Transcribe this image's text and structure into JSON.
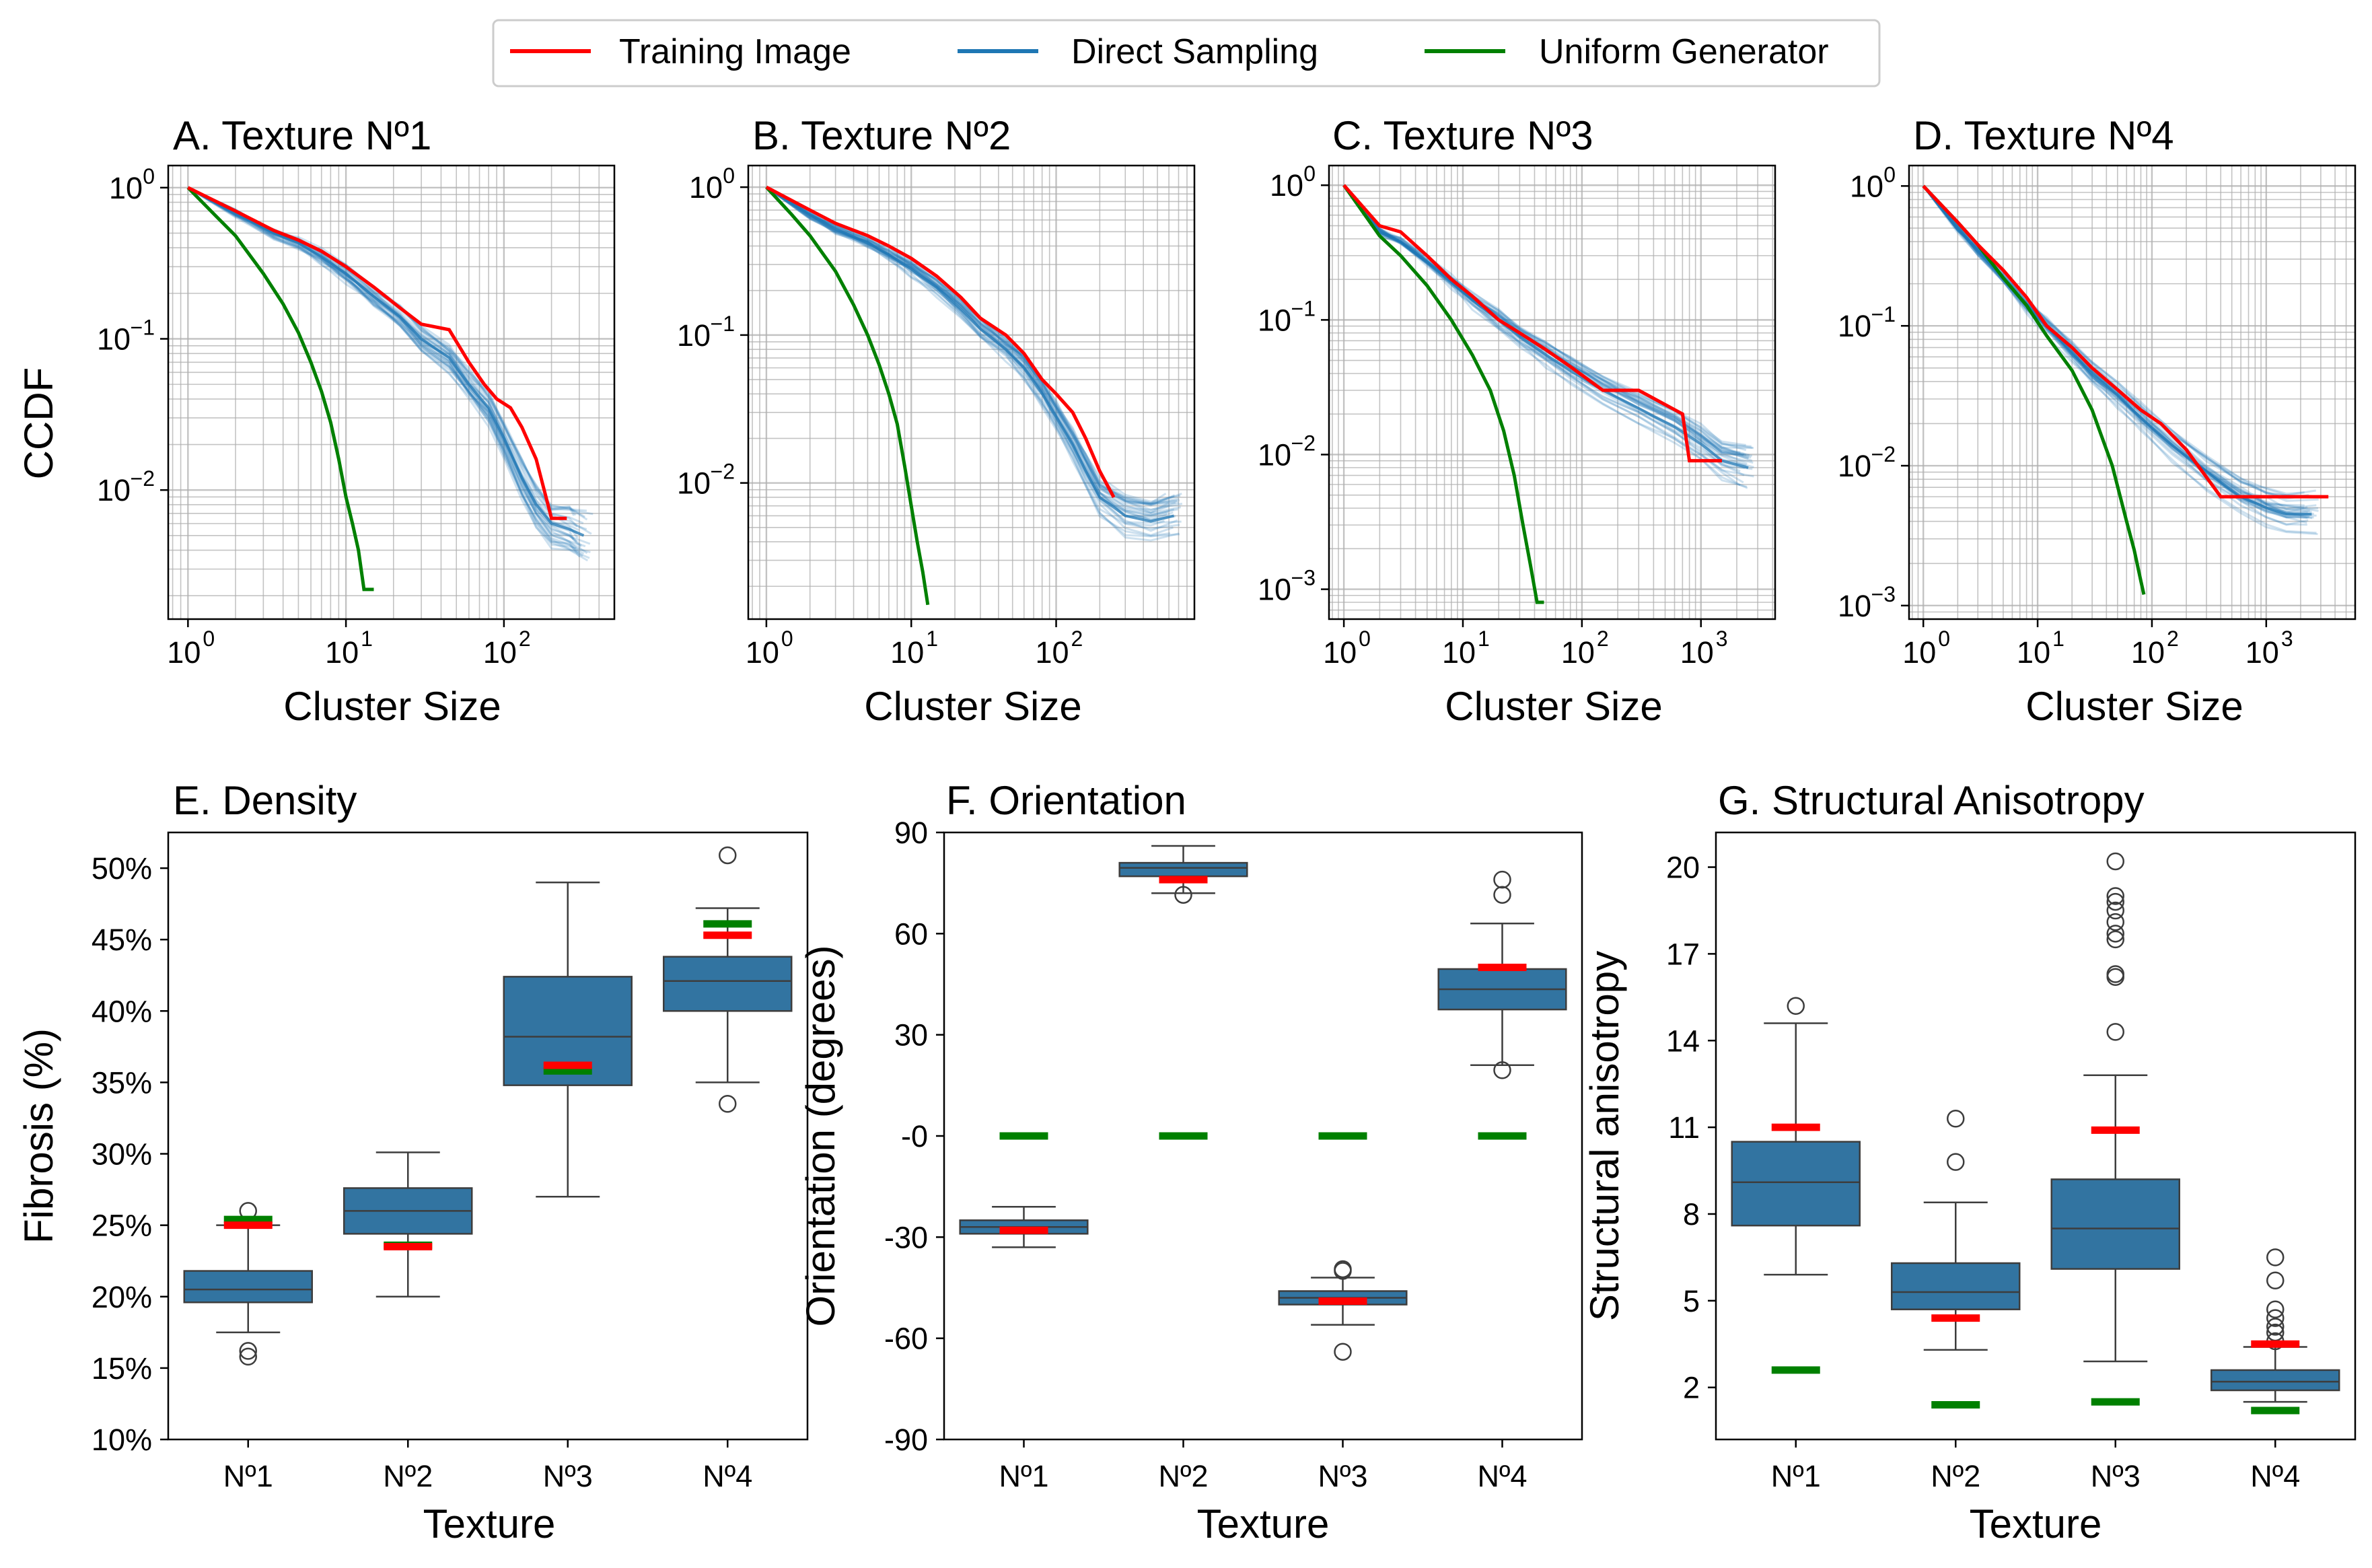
{
  "legend": {
    "items": [
      {
        "label": "Training Image",
        "color": "#ff0000"
      },
      {
        "label": "Direct Sampling",
        "color": "#1f77b4"
      },
      {
        "label": "Uniform Generator",
        "color": "#008000"
      }
    ]
  },
  "colors": {
    "training": "#ff0000",
    "direct": "#1f77b4",
    "uniform": "#008000",
    "box": "#3274a1",
    "grid": "#b0b0b0"
  },
  "chart_data": [
    {
      "type": "line",
      "id": "A",
      "title": "A. Texture Nº1",
      "xlabel": "Cluster Size",
      "ylabel": "CCDF",
      "xscale": "log",
      "yscale": "log",
      "xlim": [
        0.75,
        500
      ],
      "ylim": [
        0.0014,
        1.4
      ],
      "xticks": [
        1,
        10,
        100
      ],
      "xtick_labels": [
        "10",
        "10",
        "10"
      ],
      "xtick_exps": [
        "0",
        "1",
        "2"
      ],
      "yticks": [
        1,
        0.1,
        0.01
      ],
      "ytick_labels": [
        "10",
        "10",
        "10"
      ],
      "ytick_exps": [
        "0",
        "−1",
        "−2"
      ],
      "grid": true,
      "series": [
        {
          "name": "Training Image",
          "x": [
            1,
            2,
            3.5,
            5,
            7,
            10,
            15,
            22,
            30,
            45,
            60,
            75,
            90,
            110,
            130,
            160,
            200,
            250
          ],
          "y": [
            1,
            0.7,
            0.52,
            0.45,
            0.38,
            0.3,
            0.22,
            0.16,
            0.125,
            0.115,
            0.07,
            0.05,
            0.04,
            0.035,
            0.026,
            0.016,
            0.0065,
            0.0065
          ]
        },
        {
          "name": "Direct Sampling",
          "x": [
            1,
            2,
            3.5,
            5,
            7,
            10,
            15,
            22,
            30,
            45,
            60,
            80,
            100,
            130,
            160,
            200,
            260,
            320
          ],
          "y": [
            1,
            0.68,
            0.5,
            0.43,
            0.35,
            0.27,
            0.19,
            0.14,
            0.1,
            0.075,
            0.05,
            0.035,
            0.022,
            0.012,
            0.008,
            0.006,
            0.0055,
            0.005
          ],
          "spread": 0.35
        },
        {
          "name": "Uniform Generator",
          "x": [
            1,
            1.5,
            2,
            3,
            4,
            5,
            6,
            7,
            8,
            9,
            10,
            11,
            12,
            13,
            15
          ],
          "y": [
            1,
            0.65,
            0.48,
            0.27,
            0.17,
            0.11,
            0.07,
            0.045,
            0.028,
            0.016,
            0.009,
            0.006,
            0.004,
            0.0022,
            0.0022
          ]
        }
      ]
    },
    {
      "type": "line",
      "id": "B",
      "title": "B. Texture Nº2",
      "xlabel": "Cluster Size",
      "ylabel": "",
      "xscale": "log",
      "yscale": "log",
      "xlim": [
        0.75,
        900
      ],
      "ylim": [
        0.0012,
        1.4
      ],
      "xticks": [
        1,
        10,
        100
      ],
      "xtick_labels": [
        "10",
        "10",
        "10"
      ],
      "xtick_exps": [
        "0",
        "1",
        "2"
      ],
      "yticks": [
        1,
        0.1,
        0.01
      ],
      "ytick_labels": [
        "10",
        "10",
        "10"
      ],
      "ytick_exps": [
        "0",
        "−1",
        "−2"
      ],
      "grid": true,
      "series": [
        {
          "name": "Training Image",
          "x": [
            1,
            2,
            3,
            5,
            7,
            10,
            15,
            22,
            30,
            45,
            60,
            80,
            100,
            130,
            160,
            200,
            250
          ],
          "y": [
            1,
            0.7,
            0.57,
            0.47,
            0.4,
            0.33,
            0.25,
            0.18,
            0.13,
            0.1,
            0.075,
            0.05,
            0.04,
            0.03,
            0.02,
            0.012,
            0.008
          ]
        },
        {
          "name": "Direct Sampling",
          "x": [
            1,
            2,
            3,
            5,
            7,
            10,
            15,
            22,
            30,
            45,
            60,
            80,
            100,
            130,
            160,
            200,
            300,
            450,
            650
          ],
          "y": [
            1,
            0.65,
            0.52,
            0.42,
            0.35,
            0.28,
            0.21,
            0.15,
            0.11,
            0.08,
            0.06,
            0.04,
            0.028,
            0.018,
            0.012,
            0.008,
            0.006,
            0.0055,
            0.006
          ],
          "spread": 0.3
        },
        {
          "name": "Uniform Generator",
          "x": [
            1,
            1.5,
            2,
            3,
            4,
            5,
            6,
            7,
            8,
            9,
            10,
            11,
            12,
            13
          ],
          "y": [
            1,
            0.65,
            0.47,
            0.27,
            0.16,
            0.1,
            0.063,
            0.04,
            0.025,
            0.013,
            0.007,
            0.004,
            0.0025,
            0.0015
          ]
        }
      ]
    },
    {
      "type": "line",
      "id": "C",
      "title": "C. Texture Nº3",
      "xlabel": "Cluster Size",
      "ylabel": "",
      "xscale": "log",
      "yscale": "log",
      "xlim": [
        0.75,
        4200
      ],
      "ylim": [
        0.0006,
        1.4
      ],
      "xticks": [
        1,
        10,
        100,
        1000
      ],
      "xtick_labels": [
        "10",
        "10",
        "10",
        "10"
      ],
      "xtick_exps": [
        "0",
        "1",
        "2",
        "3"
      ],
      "yticks": [
        1,
        0.1,
        0.01,
        0.001
      ],
      "ytick_labels": [
        "10",
        "10",
        "10",
        "10"
      ],
      "ytick_exps": [
        "0",
        "−1",
        "−2",
        "−3"
      ],
      "grid": true,
      "series": [
        {
          "name": "Training Image",
          "x": [
            1,
            2,
            3,
            5,
            8,
            12,
            20,
            30,
            50,
            80,
            150,
            300,
            700,
            800,
            1500
          ],
          "y": [
            1,
            0.5,
            0.45,
            0.3,
            0.2,
            0.15,
            0.1,
            0.08,
            0.06,
            0.045,
            0.03,
            0.03,
            0.02,
            0.009,
            0.009
          ]
        },
        {
          "name": "Direct Sampling",
          "x": [
            1,
            2,
            3,
            5,
            8,
            12,
            20,
            30,
            50,
            80,
            150,
            300,
            600,
            1000,
            1500,
            2500
          ],
          "y": [
            1,
            0.45,
            0.38,
            0.27,
            0.19,
            0.14,
            0.1,
            0.075,
            0.055,
            0.042,
            0.03,
            0.022,
            0.016,
            0.012,
            0.009,
            0.008
          ],
          "spread": 0.35
        },
        {
          "name": "Uniform Generator",
          "x": [
            1,
            2,
            3,
            5,
            8,
            12,
            17,
            22,
            27,
            32,
            37,
            42,
            48
          ],
          "y": [
            1,
            0.42,
            0.3,
            0.18,
            0.1,
            0.055,
            0.03,
            0.015,
            0.007,
            0.003,
            0.0015,
            0.0008,
            0.0008
          ]
        }
      ]
    },
    {
      "type": "line",
      "id": "D",
      "title": "D. Texture Nº4",
      "xlabel": "Cluster Size",
      "ylabel": "",
      "xscale": "log",
      "yscale": "log",
      "xlim": [
        0.75,
        6000
      ],
      "ylim": [
        0.0008,
        1.4
      ],
      "xticks": [
        1,
        10,
        100,
        1000
      ],
      "xtick_labels": [
        "10",
        "10",
        "10",
        "10"
      ],
      "xtick_exps": [
        "0",
        "1",
        "2",
        "3"
      ],
      "yticks": [
        1,
        0.1,
        0.01,
        0.001
      ],
      "ytick_labels": [
        "10",
        "10",
        "10",
        "10"
      ],
      "ytick_exps": [
        "0",
        "−1",
        "−2",
        "−3"
      ],
      "grid": true,
      "series": [
        {
          "name": "Training Image",
          "x": [
            1,
            2,
            3,
            5,
            8,
            12,
            20,
            30,
            50,
            80,
            120,
            200,
            400,
            1000,
            3500
          ],
          "y": [
            1,
            0.55,
            0.38,
            0.25,
            0.16,
            0.1,
            0.07,
            0.05,
            0.035,
            0.025,
            0.02,
            0.013,
            0.006,
            0.006,
            0.006
          ]
        },
        {
          "name": "Direct Sampling",
          "x": [
            1,
            2,
            3,
            5,
            8,
            12,
            20,
            30,
            50,
            80,
            150,
            300,
            600,
            1000,
            1500,
            2500
          ],
          "y": [
            1,
            0.5,
            0.34,
            0.22,
            0.14,
            0.1,
            0.065,
            0.045,
            0.032,
            0.022,
            0.014,
            0.009,
            0.006,
            0.005,
            0.0045,
            0.0045
          ],
          "spread": 0.35
        },
        {
          "name": "Uniform Generator",
          "x": [
            1,
            2,
            3,
            5,
            8,
            12,
            20,
            30,
            45,
            60,
            70,
            80,
            85
          ],
          "y": [
            1,
            0.55,
            0.38,
            0.22,
            0.14,
            0.085,
            0.048,
            0.025,
            0.01,
            0.004,
            0.0025,
            0.0015,
            0.0012
          ]
        }
      ]
    },
    {
      "type": "box",
      "id": "E",
      "title": "E. Density",
      "xlabel": "Texture",
      "ylabel": "Fibrosis (%)",
      "categories": [
        "Nº1",
        "Nº2",
        "Nº3",
        "Nº4"
      ],
      "ylim": [
        10,
        52.5
      ],
      "yticks": [
        10,
        15,
        20,
        25,
        30,
        35,
        40,
        45,
        50
      ],
      "ytick_labels": [
        "10%",
        "15%",
        "20%",
        "25%",
        "30%",
        "35%",
        "40%",
        "45%",
        "50%"
      ],
      "boxes": [
        {
          "whislo": 17.5,
          "q1": 19.6,
          "med": 20.5,
          "q3": 21.8,
          "whishi": 25.0,
          "fliers": [
            15.8,
            16.2,
            26.0
          ]
        },
        {
          "whislo": 20.0,
          "q1": 24.4,
          "med": 26.0,
          "q3": 27.6,
          "whishi": 30.1,
          "fliers": []
        },
        {
          "whislo": 27.0,
          "q1": 34.8,
          "med": 38.2,
          "q3": 42.4,
          "whishi": 49.0,
          "fliers": []
        },
        {
          "whislo": 35.0,
          "q1": 40.0,
          "med": 42.1,
          "q3": 43.8,
          "whishi": 47.2,
          "fliers": [
            33.5,
            50.9
          ]
        }
      ],
      "training": [
        25.0,
        23.5,
        36.2,
        45.3
      ],
      "uniform": [
        25.4,
        23.6,
        35.8,
        46.1
      ]
    },
    {
      "type": "box",
      "id": "F",
      "title": "F. Orientation",
      "xlabel": "Texture",
      "ylabel": "Orientation (degrees)",
      "categories": [
        "Nº1",
        "Nº2",
        "Nº3",
        "Nº4"
      ],
      "ylim": [
        -90,
        90
      ],
      "yticks": [
        -90,
        -60,
        -30,
        0,
        30,
        60,
        90
      ],
      "ytick_labels": [
        "-90",
        "-60",
        "-30",
        "-0",
        "30",
        "60",
        "90"
      ],
      "boxes": [
        {
          "whislo": -33,
          "q1": -29,
          "med": -27,
          "q3": -25,
          "whishi": -21,
          "fliers": []
        },
        {
          "whislo": 72,
          "q1": 77,
          "med": 79.5,
          "q3": 81,
          "whishi": 86,
          "fliers": [
            71.5
          ]
        },
        {
          "whislo": -56,
          "q1": -50,
          "med": -48,
          "q3": -46,
          "whishi": -42,
          "fliers": [
            -40,
            -39.5,
            -64
          ]
        },
        {
          "whislo": 21,
          "q1": 37.5,
          "med": 43.5,
          "q3": 49.5,
          "whishi": 63,
          "fliers": [
            19.5,
            71.5,
            76
          ]
        }
      ],
      "training": [
        -28,
        76,
        -49,
        50
      ],
      "uniform": [
        0,
        0,
        0,
        0
      ]
    },
    {
      "type": "box",
      "id": "G",
      "title": "G. Structural Anisotropy",
      "xlabel": "Texture",
      "ylabel": "Structural anisotropy",
      "categories": [
        "Nº1",
        "Nº2",
        "Nº3",
        "Nº4"
      ],
      "ylim": [
        0.2,
        21.2
      ],
      "yticks": [
        2,
        5,
        8,
        11,
        14,
        17,
        20
      ],
      "ytick_labels": [
        "2",
        "5",
        "8",
        "11",
        "14",
        "17",
        "20"
      ],
      "boxes": [
        {
          "whislo": 5.9,
          "q1": 7.6,
          "med": 9.1,
          "q3": 10.5,
          "whishi": 14.6,
          "fliers": [
            15.2
          ]
        },
        {
          "whislo": 3.3,
          "q1": 4.7,
          "med": 5.3,
          "q3": 6.3,
          "whishi": 8.4,
          "fliers": [
            9.8,
            11.3
          ]
        },
        {
          "whislo": 2.9,
          "q1": 6.1,
          "med": 7.5,
          "q3": 9.2,
          "whishi": 12.8,
          "fliers": [
            14.3,
            16.2,
            16.3,
            17.5,
            17.7,
            18.1,
            18.5,
            18.8,
            19.0,
            20.2
          ]
        },
        {
          "whislo": 1.5,
          "q1": 1.9,
          "med": 2.2,
          "q3": 2.6,
          "whishi": 3.4,
          "fliers": [
            3.6,
            3.9,
            4.1,
            4.4,
            4.7,
            5.7,
            6.5
          ]
        }
      ],
      "training": [
        11.0,
        4.4,
        10.9,
        3.5
      ],
      "uniform": [
        2.6,
        1.4,
        1.5,
        1.2
      ]
    }
  ]
}
